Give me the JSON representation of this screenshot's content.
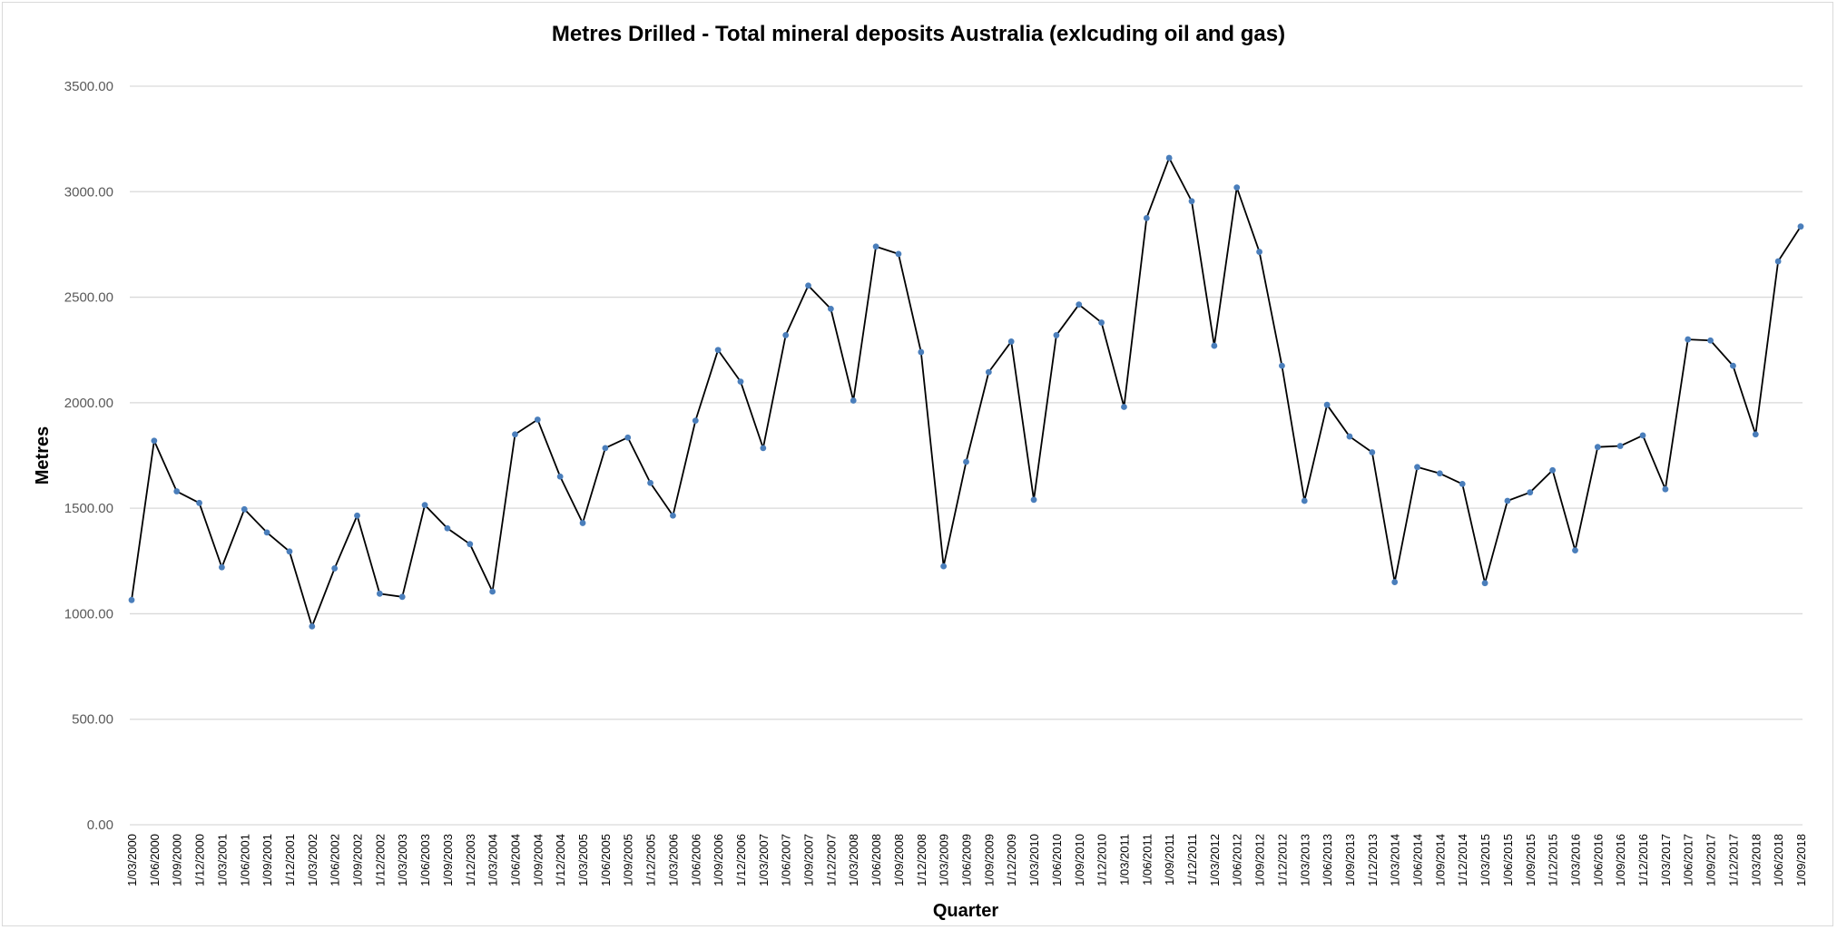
{
  "chart_data": {
    "type": "line",
    "title": "Metres Drilled - Total mineral deposits Australia (exlcuding oil and gas)",
    "xlabel": "Quarter",
    "ylabel": "Metres",
    "ylim": [
      0,
      3500
    ],
    "yticks": [
      "0.00",
      "500.00",
      "1000.00",
      "1500.00",
      "2000.00",
      "2500.00",
      "3000.00",
      "3500.00"
    ],
    "ytick_values": [
      0,
      500,
      1000,
      1500,
      2000,
      2500,
      3000,
      3500
    ],
    "grid": true,
    "legend": "none",
    "colors": {
      "line": "#000000",
      "marker": "#4a7ebb",
      "grid": "#d9d9d9"
    },
    "categories": [
      "1/03/2000",
      "1/06/2000",
      "1/09/2000",
      "1/12/2000",
      "1/03/2001",
      "1/06/2001",
      "1/09/2001",
      "1/12/2001",
      "1/03/2002",
      "1/06/2002",
      "1/09/2002",
      "1/12/2002",
      "1/03/2003",
      "1/06/2003",
      "1/09/2003",
      "1/12/2003",
      "1/03/2004",
      "1/06/2004",
      "1/09/2004",
      "1/12/2004",
      "1/03/2005",
      "1/06/2005",
      "1/09/2005",
      "1/12/2005",
      "1/03/2006",
      "1/06/2006",
      "1/09/2006",
      "1/12/2006",
      "1/03/2007",
      "1/06/2007",
      "1/09/2007",
      "1/12/2007",
      "1/03/2008",
      "1/06/2008",
      "1/09/2008",
      "1/12/2008",
      "1/03/2009",
      "1/06/2009",
      "1/09/2009",
      "1/12/2009",
      "1/03/2010",
      "1/06/2010",
      "1/09/2010",
      "1/12/2010",
      "1/03/2011",
      "1/06/2011",
      "1/09/2011",
      "1/12/2011",
      "1/03/2012",
      "1/06/2012",
      "1/09/2012",
      "1/12/2012",
      "1/03/2013",
      "1/06/2013",
      "1/09/2013",
      "1/12/2013",
      "1/03/2014",
      "1/06/2014",
      "1/09/2014",
      "1/12/2014",
      "1/03/2015",
      "1/06/2015",
      "1/09/2015",
      "1/12/2015",
      "1/03/2016",
      "1/06/2016",
      "1/09/2016",
      "1/12/2016",
      "1/03/2017",
      "1/06/2017",
      "1/09/2017",
      "1/12/2017",
      "1/03/2018",
      "1/06/2018",
      "1/09/2018"
    ],
    "series": [
      {
        "values": [
          1065,
          1820,
          1580,
          1525,
          1220,
          1495,
          1385,
          1295,
          940,
          1215,
          1465,
          1095,
          1080,
          1515,
          1405,
          1330,
          1105,
          1850,
          1920,
          1650,
          1430,
          1785,
          1835,
          1620,
          1465,
          1915,
          2250,
          2100,
          1785,
          2320,
          2555,
          2445,
          2010,
          2740,
          2705,
          2240,
          1225,
          1720,
          2145,
          2290,
          1540,
          2320,
          2465,
          2380,
          1980,
          2875,
          3160,
          2955,
          2270,
          3020,
          2715,
          2175,
          1535,
          1990,
          1840,
          1765,
          1150,
          1695,
          1665,
          1615,
          1145,
          1535,
          1575,
          1680,
          1300,
          1790,
          1795,
          1845,
          1590,
          2300,
          2295,
          2175,
          1850,
          2670,
          2835
        ]
      }
    ]
  }
}
